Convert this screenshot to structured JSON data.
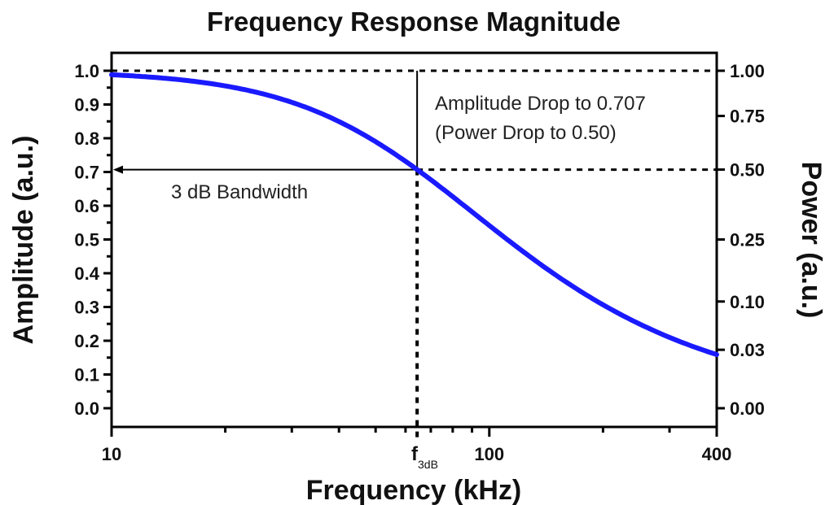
{
  "chart_data": {
    "type": "line",
    "title": "Frequency Response Magnitude",
    "xlabel": "Frequency (kHz)",
    "ylabel": "Amplitude (a.u.)",
    "y2label": "Power (a.u.)",
    "xscale": "log",
    "xlim": [
      10,
      400
    ],
    "ylim": [
      0,
      1
    ],
    "x_ticks": [
      {
        "v": 10,
        "label": "10"
      },
      {
        "v": 100,
        "label": "100"
      },
      {
        "v": 400,
        "label": "400"
      }
    ],
    "x_minor_ticks": [
      20,
      30,
      40,
      50,
      60,
      70,
      80,
      90,
      200,
      300
    ],
    "y_ticks": [
      "0.0",
      "0.1",
      "0.2",
      "0.3",
      "0.4",
      "0.5",
      "0.6",
      "0.7",
      "0.8",
      "0.9",
      "1.0"
    ],
    "y2_ticks": [
      {
        "v": 1.0,
        "label": "1.00"
      },
      {
        "v": 0.75,
        "label": "0.75"
      },
      {
        "v": 0.5,
        "label": "0.50"
      },
      {
        "v": 0.25,
        "label": "0.25"
      },
      {
        "v": 0.1,
        "label": "0.10"
      },
      {
        "v": 0.03,
        "label": "0.03"
      },
      {
        "v": 0.0,
        "label": "0.00"
      }
    ],
    "f3db": 64.4,
    "f3db_label": "f",
    "f3db_sub": "3dB",
    "series": [
      {
        "name": "Amplitude",
        "model": "1/sqrt(1+(f/f3dB)^2)",
        "color": "#1a1aff",
        "x": [
          10,
          15,
          20,
          30,
          40,
          50,
          64.4,
          80,
          100,
          150,
          200,
          300,
          400
        ],
        "y": [
          0.988,
          0.974,
          0.955,
          0.906,
          0.849,
          0.79,
          0.707,
          0.627,
          0.541,
          0.394,
          0.306,
          0.21,
          0.159
        ]
      }
    ],
    "annotations": {
      "drop1": "Amplitude Drop to 0.707",
      "drop2": "(Power Drop to 0.50)",
      "bandwidth": "3 dB Bandwidth"
    }
  }
}
